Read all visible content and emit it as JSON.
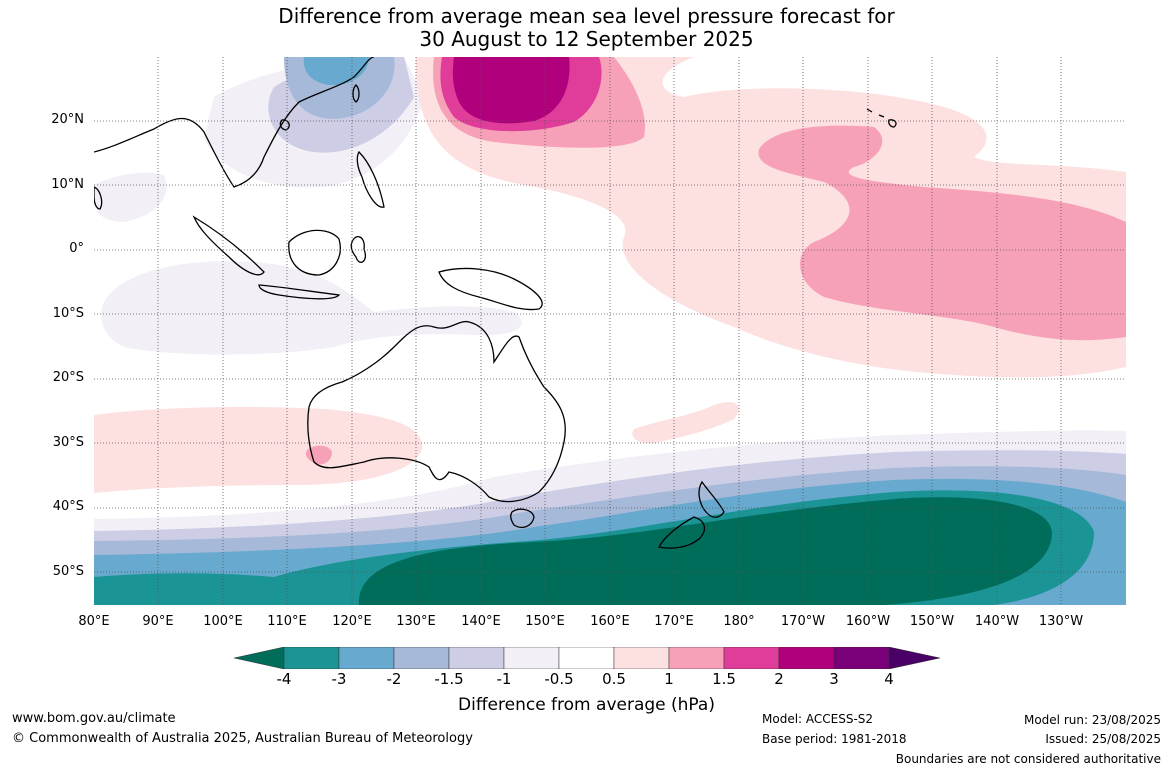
{
  "title": {
    "line1": "Difference from average mean sea level pressure forecast for",
    "line2": "30 August to 12 September 2025"
  },
  "map": {
    "latitude_labels": [
      "20°N",
      "10°N",
      "0°",
      "10°S",
      "20°S",
      "30°S",
      "40°S",
      "50°S"
    ],
    "longitude_labels": [
      "80°E",
      "90°E",
      "100°E",
      "110°E",
      "120°E",
      "130°E",
      "140°E",
      "150°E",
      "160°E",
      "170°E",
      "180°",
      "170°W",
      "160°W",
      "150°W",
      "140°W",
      "130°W"
    ],
    "extent": {
      "lon_min": 80,
      "lon_max": 240,
      "lat_min": -55,
      "lat_max": 30
    }
  },
  "colorbar": {
    "label": "Difference from average (hPa)",
    "ticks": [
      "-4",
      "-3",
      "-2",
      "-1.5",
      "-1",
      "-0.5",
      "0.5",
      "1",
      "1.5",
      "2",
      "3",
      "4"
    ],
    "colors": [
      "#006d5b",
      "#1a9494",
      "#67a9cf",
      "#a6b9d9",
      "#cdcde6",
      "#f2eff6",
      "#ffffff",
      "#fde0e0",
      "#f7a1b9",
      "#df3d99",
      "#b0007c",
      "#7a007a",
      "#4a0066"
    ]
  },
  "footer": {
    "website": "www.bom.gov.au/climate",
    "copyright": "© Commonwealth of Australia 2025, Australian Bureau of Meteorology",
    "model": "Model: ACCESS-S2",
    "base_period": "Base period: 1981-2018",
    "model_run": "Model run: 23/08/2025",
    "issued": "Issued: 25/08/2025",
    "disclaimer": "Boundaries are not considered authoritative"
  }
}
